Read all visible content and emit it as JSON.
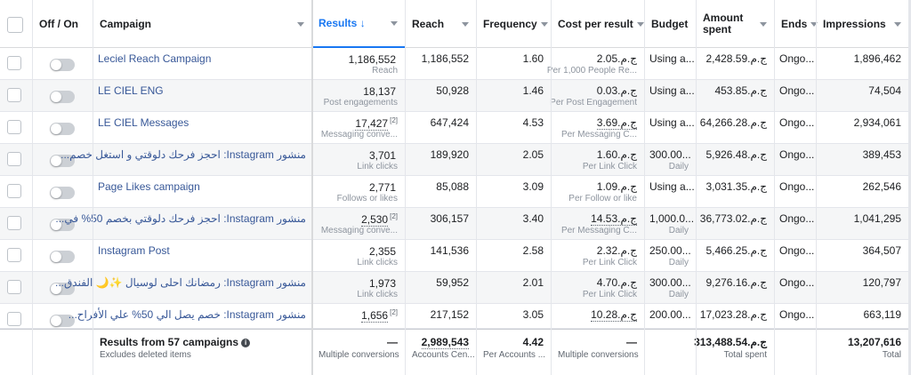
{
  "colors": {
    "link": "#385898",
    "accent": "#1877f2",
    "muted": "#8d949e"
  },
  "headers": {
    "off_on": "Off / On",
    "campaign": "Campaign",
    "results": "Results",
    "results_sort_icon": "↓",
    "reach": "Reach",
    "frequency": "Frequency",
    "cost_per_result": "Cost per result",
    "budget": "Budget",
    "amount_spent": "Amount spent",
    "ends": "Ends",
    "impressions": "Impressions"
  },
  "rows": [
    {
      "name": "Leciel Reach Campaign",
      "results": "1,186,552",
      "results_sup": "",
      "results_sub": "Reach",
      "reach": "1,186,552",
      "frequency": "1.60",
      "cost": "ج.م.‏2.05",
      "cost_sub": "Per 1,000 People Re...",
      "budget": "Using a...",
      "budget_sub": "",
      "spent": "ج.م.‏2,428.59",
      "ends": "Ongo...",
      "impressions": "1,896,462"
    },
    {
      "name": "LE CIEL ENG",
      "results": "18,137",
      "results_sup": "",
      "results_sub": "Post engagements",
      "reach": "50,928",
      "frequency": "1.46",
      "cost": "ج.م.‏0.03",
      "cost_sub": "Per Post Engagement",
      "budget": "Using a...",
      "budget_sub": "",
      "spent": "ج.م.‏453.85",
      "ends": "Ongo...",
      "impressions": "74,504"
    },
    {
      "name": "LE CIEL Messages",
      "results": "17,427",
      "results_sup": "[2]",
      "results_sub": "Messaging conve...",
      "reach": "647,424",
      "frequency": "4.53",
      "cost": "ج.م.‏3.69",
      "cost_sub": "Per Messaging C...",
      "budget": "Using a...",
      "budget_sub": "",
      "spent": "ج.م.‏64,266.28",
      "ends": "Ongo...",
      "impressions": "2,934,061"
    },
    {
      "name": "منشور Instagram: احجز فرحك دلوقتي و استغل خصم...",
      "results": "3,701",
      "results_sup": "",
      "results_sub": "Link clicks",
      "reach": "189,920",
      "frequency": "2.05",
      "cost": "ج.م.‏1.60",
      "cost_sub": "Per Link Click",
      "budget": "300.00...",
      "budget_sub": "Daily",
      "spent": "ج.م.‏5,926.48",
      "ends": "Ongo...",
      "impressions": "389,453"
    },
    {
      "name": "Page Likes campaign",
      "results": "2,771",
      "results_sup": "",
      "results_sub": "Follows or likes",
      "reach": "85,088",
      "frequency": "3.09",
      "cost": "ج.م.‏1.09",
      "cost_sub": "Per Follow or like",
      "budget": "Using a...",
      "budget_sub": "",
      "spent": "ج.م.‏3,031.35",
      "ends": "Ongo...",
      "impressions": "262,546"
    },
    {
      "name": "منشور Instagram: احجز فرحك دلوقتي بخصم 50% في...",
      "results": "2,530",
      "results_sup": "[2]",
      "results_sub": "Messaging conve...",
      "reach": "306,157",
      "frequency": "3.40",
      "cost": "ج.م.‏14.53",
      "cost_sub": "Per Messaging C...",
      "budget": "1,000.0...",
      "budget_sub": "Daily",
      "spent": "ج.م.‏36,773.02",
      "ends": "Ongo...",
      "impressions": "1,041,295"
    },
    {
      "name": "Instagram Post",
      "results": "2,355",
      "results_sup": "",
      "results_sub": "Link clicks",
      "reach": "141,536",
      "frequency": "2.58",
      "cost": "ج.م.‏2.32",
      "cost_sub": "Per Link Click",
      "budget": "250.00...",
      "budget_sub": "Daily",
      "spent": "ج.م.‏5,466.25",
      "ends": "Ongo...",
      "impressions": "364,507"
    },
    {
      "name": "منشور Instagram: رمضانك احلى لوسيال ✨🌙 الفندق...",
      "results": "1,973",
      "results_sup": "",
      "results_sub": "Link clicks",
      "reach": "59,952",
      "frequency": "2.01",
      "cost": "ج.م.‏4.70",
      "cost_sub": "Per Link Click",
      "budget": "300.00...",
      "budget_sub": "Daily",
      "spent": "ج.م.‏9,276.16",
      "ends": "Ongo...",
      "impressions": "120,797"
    },
    {
      "name": "منشور Instagram: خصم يصل الي 50% علي الأفراح...",
      "results": "1,656",
      "results_sup": "[2]",
      "results_sub": "",
      "reach": "217,152",
      "frequency": "3.05",
      "cost": "ج.م.‏10.28",
      "cost_sub": "",
      "budget": "200.00...",
      "budget_sub": "",
      "spent": "ج.م.‏17,023.28",
      "ends": "Ongo...",
      "impressions": "663,119"
    }
  ],
  "footer": {
    "title": "Results from 57 campaigns",
    "subtitle": "Excludes deleted items",
    "results": "—",
    "results_sub": "Multiple conversions",
    "reach": "2,989,543",
    "reach_sub": "Accounts Cen...",
    "frequency": "4.42",
    "frequency_sub": "Per Accounts ...",
    "cost": "—",
    "cost_sub": "Multiple conversions",
    "spent": "313,488.54.ج.م",
    "spent_sub": "Total spent",
    "impressions": "13,207,616",
    "impressions_sub": "Total"
  }
}
